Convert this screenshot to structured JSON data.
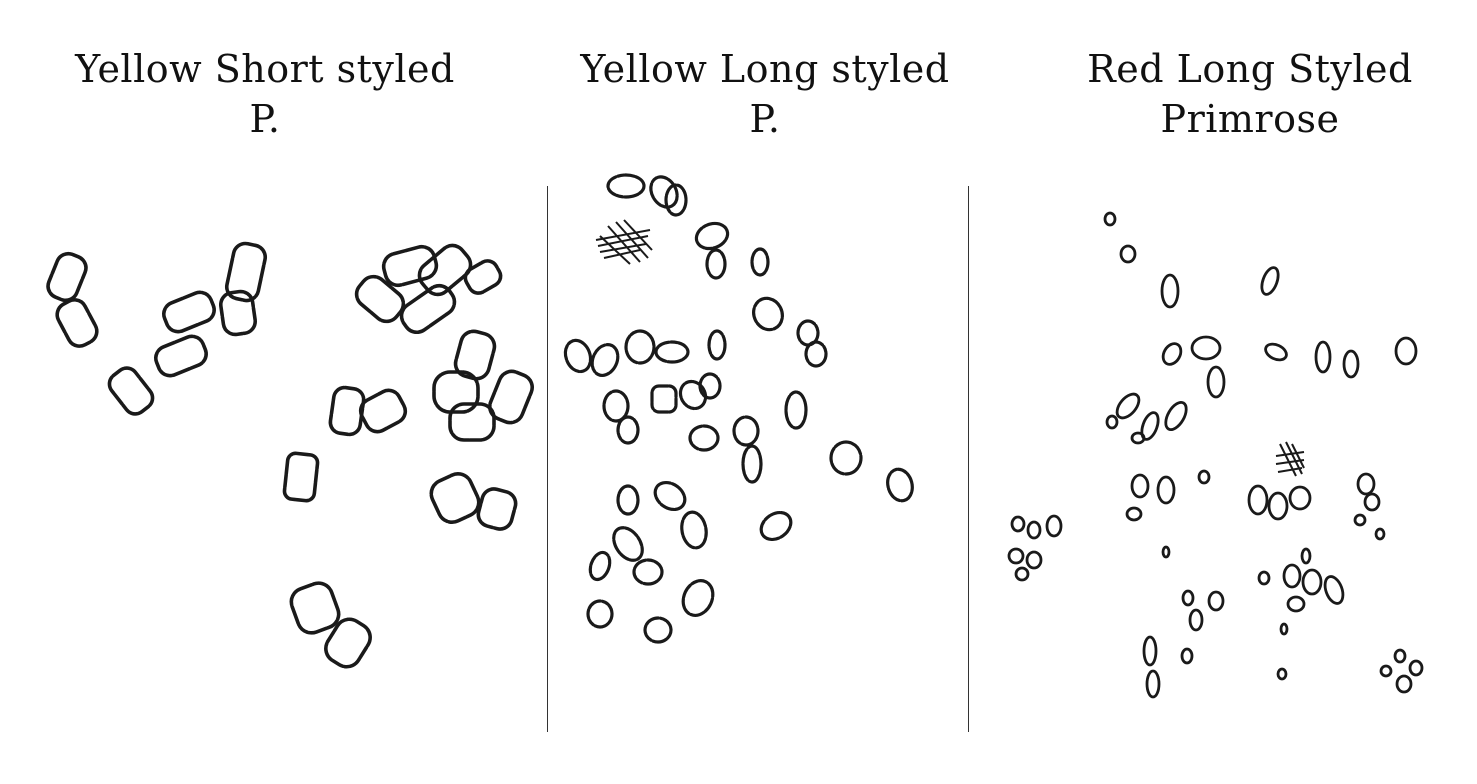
{
  "panels": [
    {
      "title_line1": "Yellow Short styled",
      "title_line2": "P."
    },
    {
      "title_line1": "Yellow Long styled",
      "title_line2": "P."
    },
    {
      "title_line1": "Red Long Styled",
      "title_line2": "Primrose"
    }
  ],
  "colors": {
    "ink": "#1a1a1a",
    "background": "#ffffff"
  }
}
